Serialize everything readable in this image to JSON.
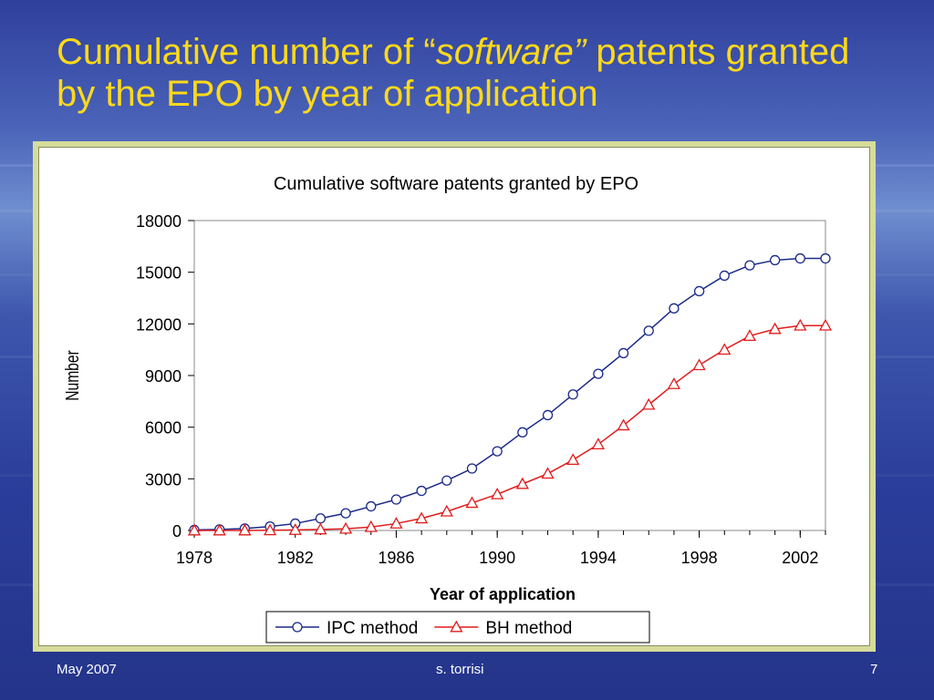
{
  "slide": {
    "title_before": "Cumulative number of “",
    "title_em": "software”",
    "title_after": " patents granted by the EPO by year of application",
    "footer_left": "May 2007",
    "footer_center": "s. torrisi",
    "footer_right": "7"
  },
  "colors": {
    "title": "#ffd91a",
    "ipc_series": "#1a2a8a",
    "bh_series": "#e21b1b",
    "frame": "#d6dc9a"
  },
  "chart_data": {
    "type": "line",
    "title": "Cumulative software patents granted by EPO",
    "xlabel": "Year of application",
    "ylabel": "Number",
    "xlim": [
      1978,
      2003
    ],
    "ylim": [
      0,
      18000
    ],
    "x_ticks": [
      1978,
      1982,
      1986,
      1990,
      1994,
      1998,
      2002
    ],
    "y_ticks": [
      0,
      3000,
      6000,
      9000,
      12000,
      15000,
      18000
    ],
    "legend": "bottom",
    "grid": false,
    "x": [
      1978,
      1979,
      1980,
      1981,
      1982,
      1983,
      1984,
      1985,
      1986,
      1987,
      1988,
      1989,
      1990,
      1991,
      1992,
      1993,
      1994,
      1995,
      1996,
      1997,
      1998,
      1999,
      2000,
      2001,
      2002,
      2003
    ],
    "series": [
      {
        "name": "IPC method",
        "marker": "circle",
        "color": "#1a2a8a",
        "values": [
          30,
          60,
          110,
          230,
          400,
          700,
          1000,
          1400,
          1800,
          2300,
          2900,
          3600,
          4600,
          5700,
          6700,
          7900,
          9100,
          10300,
          11600,
          12900,
          13900,
          14800,
          15400,
          15700,
          15800,
          15800
        ]
      },
      {
        "name": "BH method",
        "marker": "triangle",
        "color": "#e21b1b",
        "values": [
          0,
          0,
          0,
          10,
          30,
          60,
          100,
          200,
          400,
          700,
          1100,
          1600,
          2100,
          2700,
          3300,
          4100,
          5000,
          6100,
          7300,
          8500,
          9600,
          10500,
          11300,
          11700,
          11900,
          11900
        ]
      }
    ]
  }
}
